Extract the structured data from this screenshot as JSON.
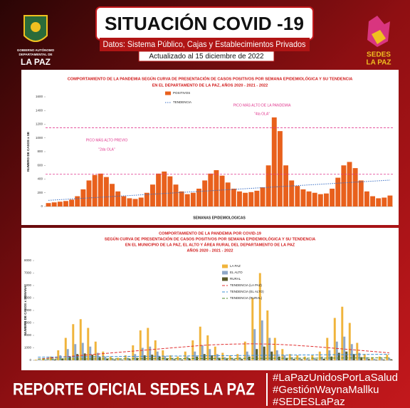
{
  "header": {
    "title": "SITUACIÓN COVID -19",
    "subtitle": "Datos: Sistema Público, Cajas y Establecimientos Privados",
    "updated": "Actualizado al 15 diciembre de 2022",
    "left_logo": [
      "GOBIERNO AUTÓNOMO",
      "DEPARTAMENTAL DE",
      "LA PAZ"
    ],
    "right_logo": [
      "SEDES",
      "LA PAZ"
    ]
  },
  "footer": {
    "title": "REPORTE OFICIAL SEDES LA PAZ",
    "hashtags": [
      "#LaPazUnidosPorLaSalud",
      "#GestiónWaynaMallku",
      "#SEDESLaPaz"
    ]
  },
  "chart_data": [
    {
      "type": "combo",
      "title": [
        "COMPORTAMIENTO DE LA PANDEMIA SEGÚN CURVA DE PRESENTACIÓN DE CASOS POSITIVOS POR SEMANA EPIDEMIOLÓGICA Y SU TENDENCIA",
        "EN EL DEPARTAMENTO DE LA PAZ, AÑOS 2020 - 2021 - 2022"
      ],
      "xlabel": "SEMANAS EPIDEMIOLOGICAS",
      "ylabel": "NUMERO DE CASOS x SE",
      "ylim": [
        0,
        1600
      ],
      "yticks": [
        0,
        200,
        400,
        600,
        800,
        1000,
        1200,
        1400,
        1600
      ],
      "grid": false,
      "legend": "top",
      "series": [
        {
          "name": "POSITIVOS",
          "type": "bar",
          "color": "#e8601c",
          "values": [
            50,
            60,
            70,
            80,
            100,
            150,
            250,
            380,
            460,
            480,
            430,
            330,
            220,
            150,
            120,
            110,
            130,
            200,
            320,
            480,
            510,
            440,
            320,
            220,
            180,
            200,
            260,
            380,
            480,
            530,
            450,
            350,
            260,
            220,
            200,
            210,
            230,
            280,
            600,
            1300,
            1100,
            600,
            380,
            300,
            250,
            220,
            200,
            180,
            190,
            260,
            420,
            600,
            650,
            560,
            380,
            220,
            150,
            120,
            130,
            160
          ]
        },
        {
          "name": "TENDENCIA",
          "type": "line",
          "style": "dotted",
          "color": "#3b6fc4",
          "values": [
            90,
            95,
            100,
            105,
            110,
            115,
            120,
            125,
            130,
            135,
            140,
            145,
            150,
            155,
            160,
            165,
            170,
            175,
            180,
            185,
            190,
            195,
            200,
            205,
            210,
            215,
            220,
            225,
            230,
            235,
            240,
            245,
            250,
            255,
            260,
            265,
            270,
            275,
            280,
            285,
            290,
            295,
            300,
            305,
            310,
            315,
            320,
            325,
            330,
            335,
            340,
            345,
            350,
            355,
            360,
            365,
            370,
            375,
            380,
            385
          ]
        }
      ],
      "hlines": [
        470,
        1150
      ],
      "hline_color": "#e0338c",
      "annotations": [
        "PICO MÁS ALTO PREVIO",
        "\"2da OLA\"",
        "PICO MÁS ALTO DE LA PANDEMIA",
        "\"4ta OLA\""
      ]
    },
    {
      "type": "combo",
      "title": [
        "COMPORTAMIENTO DE LA PANDEMIA POR COVID-19",
        "SEGÚN CURVA DE PRESENTACIÓN DE CASOS POSITIVOS POR SEMANA EPIDEMIOLÓGICA Y SU TENDENCIA",
        "EN EL  MUNICIPIO DE LA PAZ, EL ALTO Y ÁREA RURAL DEL DEPARTAMENTO DE LA PAZ",
        "AÑOS 2020 - 2021 - 2022"
      ],
      "ylabel": "NUMERO DE CASOS x SEMANA",
      "ylim": [
        0,
        8000
      ],
      "yticks": [
        0,
        1000,
        2000,
        3000,
        4000,
        5000,
        6000,
        7000,
        8000
      ],
      "grid": false,
      "legend": "right",
      "series": [
        {
          "name": "LA PAZ",
          "type": "bar",
          "color": "#f0b43c",
          "values": [
            50,
            100,
            300,
            800,
            1800,
            2900,
            3300,
            2600,
            1500,
            700,
            300,
            200,
            400,
            1200,
            2400,
            2600,
            1600,
            800,
            400,
            300,
            700,
            1600,
            2700,
            2000,
            1100,
            600,
            400,
            500,
            1500,
            5000,
            7000,
            4000,
            1800,
            900,
            500,
            400,
            300,
            400,
            700,
            1800,
            3400,
            4300,
            3000,
            1400,
            500,
            250,
            300,
            450
          ]
        },
        {
          "name": "EL ALTO",
          "type": "bar",
          "color": "#8fa8c8",
          "values": [
            20,
            50,
            150,
            400,
            900,
            1300,
            1400,
            1100,
            600,
            300,
            150,
            100,
            200,
            500,
            1000,
            1100,
            700,
            350,
            200,
            150,
            300,
            700,
            1200,
            900,
            500,
            250,
            200,
            250,
            700,
            2500,
            3200,
            1800,
            800,
            400,
            250,
            200,
            150,
            200,
            300,
            800,
            1500,
            1900,
            1300,
            600,
            250,
            120,
            150,
            200
          ]
        },
        {
          "name": "RURAL",
          "type": "bar",
          "color": "#5a5a2a",
          "values": [
            10,
            20,
            60,
            150,
            300,
            500,
            550,
            450,
            250,
            120,
            60,
            40,
            80,
            200,
            400,
            450,
            300,
            150,
            80,
            60,
            120,
            300,
            500,
            400,
            200,
            100,
            80,
            100,
            300,
            900,
            1100,
            700,
            300,
            150,
            100,
            80,
            60,
            80,
            120,
            300,
            600,
            700,
            500,
            250,
            100,
            50,
            60,
            80
          ]
        },
        {
          "name": "TENDENCIA (LA PAZ)",
          "type": "line",
          "style": "dashed",
          "color": "#e03030",
          "values": [
            100,
            150,
            200,
            250,
            300,
            350,
            400,
            450,
            500,
            550,
            600,
            650,
            700,
            750,
            800,
            850,
            900,
            950,
            1000,
            1050,
            1100,
            1150,
            1200,
            1230,
            1260,
            1280,
            1300,
            1310,
            1320,
            1320,
            1310,
            1300,
            1280,
            1250,
            1220,
            1180,
            1140,
            1100,
            1050,
            1000,
            950,
            900,
            850,
            800,
            750,
            700,
            650,
            600
          ]
        },
        {
          "name": "TENDENCIA (EL ALTO)",
          "type": "line",
          "style": "dashed",
          "color": "#3b8fd0",
          "values": [
            250,
            255,
            260,
            265,
            270,
            275,
            280,
            285,
            290,
            295,
            300,
            305,
            310,
            315,
            320,
            325,
            330,
            335,
            340,
            345,
            350,
            355,
            360,
            365,
            370,
            375,
            380,
            385,
            390,
            395,
            400,
            405,
            410,
            415,
            420,
            425,
            430,
            435,
            440,
            445,
            450,
            455,
            460,
            465,
            470,
            475,
            480,
            485
          ]
        },
        {
          "name": "TENDENCIA (RURAL)",
          "type": "line",
          "style": "dashed",
          "color": "#4f8a2a",
          "values": [
            100,
            102,
            104,
            106,
            108,
            110,
            112,
            114,
            116,
            118,
            120,
            122,
            124,
            126,
            128,
            130,
            132,
            134,
            136,
            138,
            140,
            142,
            144,
            146,
            148,
            150,
            152,
            154,
            156,
            158,
            160,
            162,
            164,
            166,
            168,
            170,
            172,
            174,
            176,
            178,
            180,
            182,
            184,
            186,
            188,
            190,
            192,
            194
          ]
        }
      ]
    }
  ]
}
